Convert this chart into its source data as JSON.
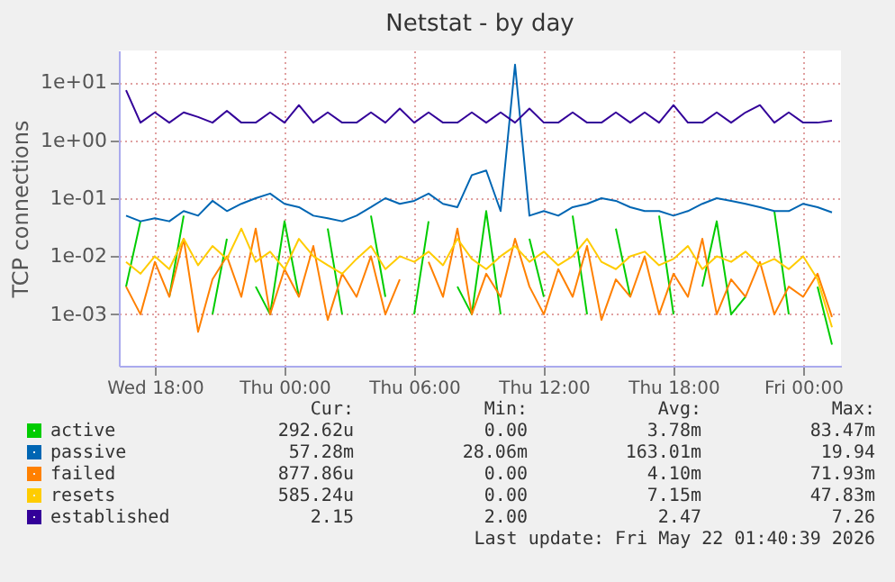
{
  "chart_data": {
    "type": "line",
    "title": "Netstat - by day",
    "ylabel": "TCP connections",
    "log": "y",
    "grid": true,
    "legend": "bottom",
    "marker": "none",
    "line_style": "solid",
    "x": [
      "2026-05-20T16:40",
      "2026-05-20T17:20",
      "2026-05-20T18:00",
      "2026-05-20T18:40",
      "2026-05-20T19:20",
      "2026-05-20T20:00",
      "2026-05-20T20:40",
      "2026-05-20T21:20",
      "2026-05-20T22:00",
      "2026-05-20T22:40",
      "2026-05-20T23:20",
      "2026-05-21T00:00",
      "2026-05-21T00:40",
      "2026-05-21T01:20",
      "2026-05-21T02:00",
      "2026-05-21T02:40",
      "2026-05-21T03:20",
      "2026-05-21T04:00",
      "2026-05-21T04:40",
      "2026-05-21T05:20",
      "2026-05-21T06:00",
      "2026-05-21T06:40",
      "2026-05-21T07:20",
      "2026-05-21T08:00",
      "2026-05-21T08:40",
      "2026-05-21T09:20",
      "2026-05-21T10:00",
      "2026-05-21T10:40",
      "2026-05-21T11:20",
      "2026-05-21T12:00",
      "2026-05-21T12:40",
      "2026-05-21T13:20",
      "2026-05-21T14:00",
      "2026-05-21T14:40",
      "2026-05-21T15:20",
      "2026-05-21T16:00",
      "2026-05-21T16:40",
      "2026-05-21T17:20",
      "2026-05-21T18:00",
      "2026-05-21T18:40",
      "2026-05-21T19:20",
      "2026-05-21T20:00",
      "2026-05-21T20:40",
      "2026-05-21T21:20",
      "2026-05-21T22:00",
      "2026-05-21T22:40",
      "2026-05-21T23:20",
      "2026-05-22T00:00",
      "2026-05-22T00:40",
      "2026-05-22T01:20"
    ],
    "xlim": [
      "2026-05-20T16:20",
      "2026-05-22T01:45"
    ],
    "xticks": [
      {
        "value": "2026-05-20T18:00",
        "label": "Wed 18:00"
      },
      {
        "value": "2026-05-21T00:00",
        "label": "Thu 00:00"
      },
      {
        "value": "2026-05-21T06:00",
        "label": "Thu 06:00"
      },
      {
        "value": "2026-05-21T12:00",
        "label": "Thu 12:00"
      },
      {
        "value": "2026-05-21T18:00",
        "label": "Thu 18:00"
      },
      {
        "value": "2026-05-22T00:00",
        "label": "Fri 00:00"
      }
    ],
    "ylim": [
      0.00013,
      35
    ],
    "yticks": [
      {
        "value": 0.001,
        "label": "1e-03"
      },
      {
        "value": 0.01,
        "label": "1e-02"
      },
      {
        "value": 0.1,
        "label": "1e-01"
      },
      {
        "value": 1,
        "label": "1e+00"
      },
      {
        "value": 10,
        "label": "1e+01"
      }
    ],
    "series": [
      {
        "name": "active",
        "color": "#00cc00",
        "values": [
          0.003,
          0.04,
          null,
          0.002,
          0.05,
          null,
          0.001,
          0.02,
          null,
          0.003,
          0.001,
          0.04,
          0.002,
          null,
          0.03,
          0.001,
          null,
          0.05,
          0.002,
          null,
          0.001,
          0.04,
          null,
          0.003,
          0.001,
          0.06,
          0.001,
          null,
          0.02,
          0.002,
          null,
          0.05,
          0.001,
          null,
          0.03,
          0.002,
          null,
          0.05,
          0.001,
          null,
          0.003,
          0.04,
          0.001,
          0.002,
          null,
          0.06,
          0.001,
          null,
          0.003,
          0.0003
        ]
      },
      {
        "name": "passive",
        "color": "#0066b3",
        "values": [
          0.05,
          0.04,
          0.045,
          0.04,
          0.06,
          0.05,
          0.09,
          0.06,
          0.08,
          0.1,
          0.12,
          0.08,
          0.07,
          0.05,
          0.045,
          0.04,
          0.05,
          0.07,
          0.1,
          0.08,
          0.09,
          0.12,
          0.08,
          0.07,
          0.25,
          0.3,
          0.06,
          19.94,
          0.05,
          0.06,
          0.05,
          0.07,
          0.08,
          0.1,
          0.09,
          0.07,
          0.06,
          0.06,
          0.05,
          0.06,
          0.08,
          0.1,
          0.09,
          0.08,
          0.07,
          0.06,
          0.06,
          0.08,
          0.07,
          0.057
        ]
      },
      {
        "name": "failed",
        "color": "#ff8000",
        "values": [
          0.003,
          0.001,
          0.008,
          0.002,
          0.02,
          0.0005,
          0.004,
          0.01,
          0.002,
          0.03,
          0.001,
          0.006,
          0.002,
          0.015,
          0.0008,
          0.005,
          0.002,
          0.01,
          0.001,
          0.004,
          null,
          0.008,
          0.002,
          0.03,
          0.001,
          0.005,
          0.002,
          0.02,
          0.003,
          0.001,
          0.006,
          0.002,
          0.015,
          0.0008,
          0.004,
          0.002,
          0.01,
          0.001,
          0.005,
          0.002,
          0.02,
          0.001,
          0.004,
          0.002,
          0.008,
          0.001,
          0.003,
          0.002,
          0.005,
          0.0009
        ]
      },
      {
        "name": "resets",
        "color": "#ffcc00",
        "values": [
          0.008,
          0.005,
          0.01,
          0.006,
          0.02,
          0.007,
          0.015,
          0.009,
          0.03,
          0.008,
          0.012,
          0.006,
          0.02,
          0.01,
          0.007,
          0.005,
          0.009,
          0.015,
          0.006,
          0.01,
          0.008,
          0.012,
          0.007,
          0.02,
          0.009,
          0.006,
          0.01,
          0.015,
          0.008,
          0.012,
          0.007,
          0.01,
          0.02,
          0.008,
          0.006,
          0.01,
          0.012,
          0.007,
          0.009,
          0.015,
          0.006,
          0.01,
          0.008,
          0.012,
          0.007,
          0.009,
          0.006,
          0.01,
          0.004,
          0.0006
        ]
      },
      {
        "name": "established",
        "color": "#330099",
        "values": [
          7.26,
          2,
          3,
          2,
          3,
          2.5,
          2,
          3.2,
          2,
          2,
          3,
          2,
          4,
          2,
          3,
          2,
          2,
          3,
          2,
          3.5,
          2,
          3,
          2,
          2,
          3,
          2,
          3,
          2,
          3.5,
          2,
          2,
          3,
          2,
          2,
          3,
          2,
          3,
          2,
          4,
          2,
          2,
          3,
          2,
          3,
          4,
          2,
          3,
          2,
          2,
          2.15
        ]
      }
    ],
    "annotations": [
      "Cur:",
      "Min:",
      "Avg:",
      "Max:",
      "292.62u",
      "0.00",
      "3.78m",
      "83.47m",
      "57.28m",
      "28.06m",
      "163.01m",
      "19.94",
      "877.86u",
      "0.00",
      "4.10m",
      "71.93m",
      "585.24u",
      "0.00",
      "7.15m",
      "47.83m",
      "2.15",
      "2.00",
      "2.47",
      "7.26",
      "Last update: Fri May 22 01:40:39 2026"
    ]
  }
}
